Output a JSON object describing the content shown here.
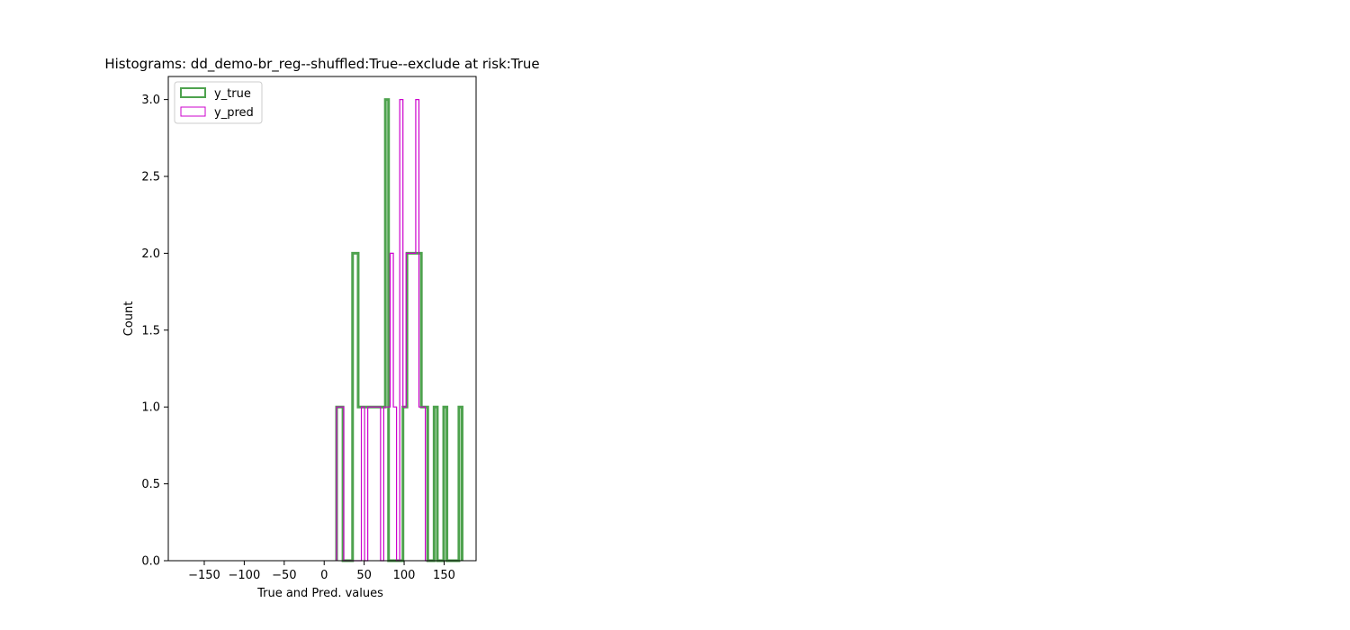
{
  "chart_data": {
    "type": "bar",
    "title": "Histograms: dd_demo-br_reg--shuffled:True--exclude at risk:True",
    "xlabel": "True and Pred. values",
    "ylabel": "Count",
    "xlim": [
      -195,
      190
    ],
    "ylim": [
      0,
      3.15
    ],
    "xticks": [
      -150,
      -100,
      -50,
      0,
      50,
      100,
      150
    ],
    "xtick_labels": [
      "−150",
      "−100",
      "−50",
      "0",
      "50",
      "100",
      "150"
    ],
    "yticks": [
      0.0,
      0.5,
      1.0,
      1.5,
      2.0,
      2.5,
      3.0
    ],
    "ytick_labels": [
      "0.0",
      "0.5",
      "1.0",
      "1.5",
      "2.0",
      "2.5",
      "3.0"
    ],
    "grid": false,
    "legend_position": "top-left",
    "series": [
      {
        "name": "y_true",
        "style": "step",
        "color": "#4ea24e",
        "bins": [
          [
            15.5,
            19.5,
            1
          ],
          [
            19.5,
            23.5,
            1
          ],
          [
            23.5,
            27.5,
            0
          ],
          [
            27.5,
            31.5,
            0
          ],
          [
            31.5,
            35.5,
            0
          ],
          [
            35.5,
            42.5,
            2
          ],
          [
            42.5,
            46.5,
            1
          ],
          [
            46.5,
            76.5,
            1
          ],
          [
            76.5,
            80.5,
            3
          ],
          [
            80.5,
            98.5,
            0
          ],
          [
            98.5,
            103.5,
            1
          ],
          [
            103.5,
            112.5,
            2
          ],
          [
            112.5,
            116.5,
            2
          ],
          [
            116.5,
            121.5,
            2
          ],
          [
            121.5,
            125.5,
            1
          ],
          [
            125.5,
            129.5,
            1
          ],
          [
            129.5,
            137.5,
            0
          ],
          [
            137.5,
            141.5,
            1
          ],
          [
            141.5,
            145.5,
            0
          ],
          [
            145.5,
            149.5,
            0
          ],
          [
            149.5,
            153.5,
            1
          ],
          [
            153.5,
            168.5,
            0
          ],
          [
            168.5,
            172.5,
            1
          ]
        ]
      },
      {
        "name": "y_pred",
        "style": "step",
        "color": "#cc00cc",
        "bins": [
          [
            15.5,
            20.5,
            1
          ],
          [
            20.5,
            24.5,
            1
          ],
          [
            24.5,
            46.5,
            0
          ],
          [
            46.5,
            50.5,
            1
          ],
          [
            50.5,
            54.5,
            0
          ],
          [
            54.5,
            58.5,
            1
          ],
          [
            58.5,
            62.5,
            1
          ],
          [
            62.5,
            66.5,
            1
          ],
          [
            66.5,
            70.5,
            1
          ],
          [
            70.5,
            74.5,
            0
          ],
          [
            74.5,
            78.5,
            1
          ],
          [
            78.5,
            82.5,
            1
          ],
          [
            82.5,
            86.5,
            2
          ],
          [
            86.5,
            90.5,
            1
          ],
          [
            90.5,
            94.5,
            0
          ],
          [
            94.5,
            98.5,
            3
          ],
          [
            98.5,
            102.5,
            1
          ],
          [
            102.5,
            106.5,
            2
          ],
          [
            106.5,
            110.5,
            2
          ],
          [
            110.5,
            114.5,
            2
          ],
          [
            114.5,
            118.5,
            3
          ],
          [
            118.5,
            122.5,
            1
          ],
          [
            122.5,
            126.5,
            1
          ],
          [
            126.5,
            130.5,
            0
          ]
        ]
      }
    ]
  }
}
